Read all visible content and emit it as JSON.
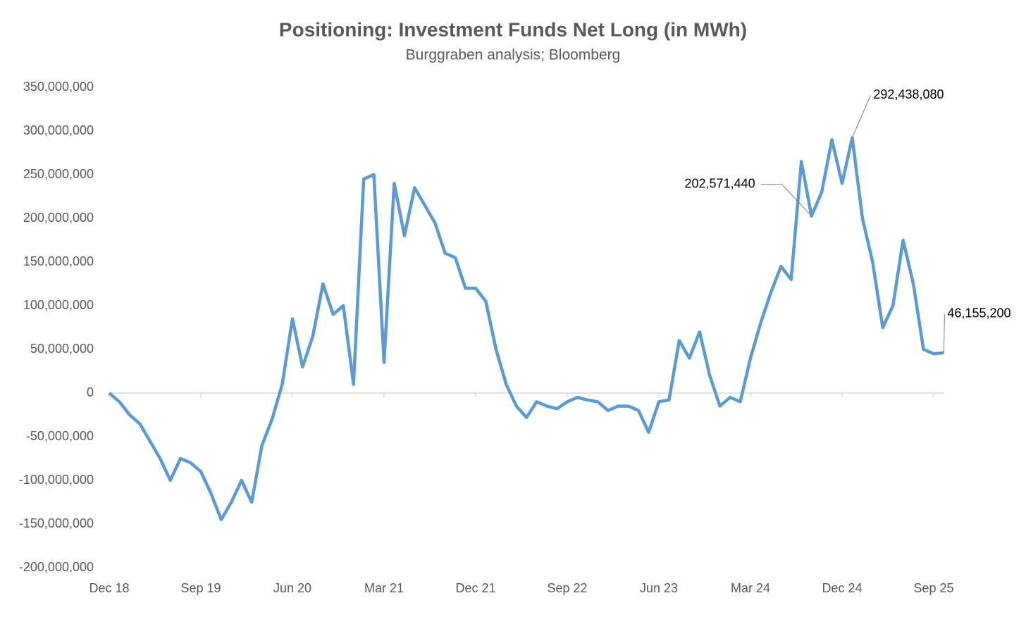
{
  "chart_data": {
    "type": "line",
    "title": "Positioning: Investment Funds Net Long (in MWh)",
    "subtitle": "Burggraben analysis; Bloomberg",
    "categories": [
      "Dec 18",
      null,
      null,
      null,
      null,
      null,
      null,
      null,
      null,
      "Sep 19",
      null,
      null,
      null,
      null,
      null,
      null,
      null,
      null,
      "Jun 20",
      null,
      null,
      null,
      null,
      null,
      null,
      null,
      null,
      "Mar 21",
      null,
      null,
      null,
      null,
      null,
      null,
      null,
      null,
      "Dec 21",
      null,
      null,
      null,
      null,
      null,
      null,
      null,
      null,
      "Sep 22",
      null,
      null,
      null,
      null,
      null,
      null,
      null,
      null,
      "Jun 23",
      null,
      null,
      null,
      null,
      null,
      null,
      null,
      null,
      "Mar 24",
      null,
      null,
      null,
      null,
      null,
      null,
      null,
      null,
      "Dec 24",
      null,
      null,
      null,
      null,
      null,
      null,
      null,
      null,
      "Sep 25",
      null
    ],
    "series": [
      {
        "name": "Investment Funds Net Long",
        "color": "#5b9bd5",
        "values": [
          0,
          -10000000,
          -25000000,
          -35000000,
          -55000000,
          -75000000,
          -100000000,
          -75000000,
          -80000000,
          -90000000,
          -115000000,
          -145000000,
          -125000000,
          -100000000,
          -125000000,
          -60000000,
          -30000000,
          10000000,
          85000000,
          30000000,
          65000000,
          125000000,
          90000000,
          100000000,
          10000000,
          245000000,
          250000000,
          35000000,
          240000000,
          180000000,
          235000000,
          215000000,
          195000000,
          160000000,
          155000000,
          120000000,
          120000000,
          105000000,
          50000000,
          10000000,
          -15000000,
          -28000000,
          -10000000,
          -15000000,
          -18000000,
          -10000000,
          -5000000,
          -8000000,
          -10000000,
          -20000000,
          -15000000,
          -15000000,
          -20000000,
          -45000000,
          -10000000,
          -8000000,
          60000000,
          40000000,
          70000000,
          20000000,
          -15000000,
          -5000000,
          -10000000,
          40000000,
          80000000,
          115000000,
          145000000,
          130000000,
          265000000,
          202571440,
          230000000,
          290000000,
          240000000,
          292438080,
          200000000,
          150000000,
          75000000,
          100000000,
          175000000,
          125000000,
          50000000,
          45000000,
          46155200
        ],
        "value_labels": [
          null,
          null,
          null,
          null,
          null,
          null,
          null,
          null,
          null,
          null,
          null,
          null,
          null,
          null,
          null,
          null,
          null,
          null,
          null,
          null,
          null,
          null,
          null,
          null,
          null,
          null,
          null,
          null,
          null,
          null,
          null,
          null,
          null,
          null,
          null,
          null,
          null,
          null,
          null,
          null,
          null,
          null,
          null,
          null,
          null,
          null,
          null,
          null,
          null,
          null,
          null,
          null,
          null,
          null,
          null,
          null,
          null,
          null,
          null,
          null,
          null,
          null,
          null,
          null,
          null,
          null,
          null,
          null,
          null,
          "202,571,440",
          null,
          null,
          null,
          "292,438,080",
          null,
          null,
          null,
          null,
          null,
          null,
          null,
          null,
          "46,155,200"
        ]
      }
    ],
    "ylim": [
      -200000000,
      350000000
    ],
    "yticks": [
      {
        "value": -200000000,
        "label": "-200,000,000"
      },
      {
        "value": -150000000,
        "label": "-150,000,000"
      },
      {
        "value": -100000000,
        "label": "-100,000,000"
      },
      {
        "value": -50000000,
        "label": "-50,000,000"
      },
      0,
      {
        "value": 50000000,
        "label": "50,000,000"
      },
      {
        "value": 100000000,
        "label": "100,000,000"
      },
      {
        "value": 150000000,
        "label": "150,000,000"
      },
      {
        "value": 200000000,
        "label": "200,000,000"
      },
      {
        "value": 250000000,
        "label": "250,000,000"
      },
      {
        "value": 300000000,
        "label": "300,000,000"
      },
      {
        "value": 350000000,
        "label": "350,000,000"
      }
    ],
    "grid": false
  }
}
